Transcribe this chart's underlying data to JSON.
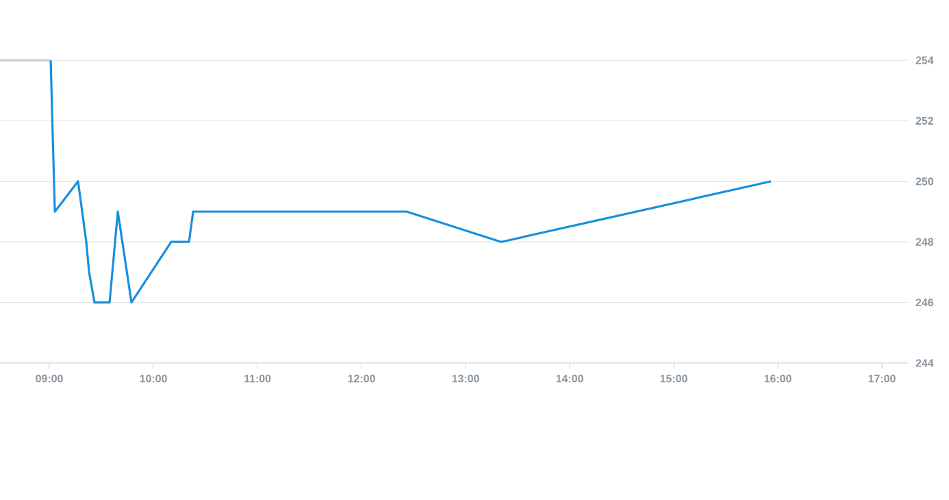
{
  "chart_data": {
    "type": "line",
    "series": [
      {
        "color": "#c5ccd3",
        "x": [
          8.526,
          9.0
        ],
        "values": [
          254,
          254
        ]
      },
      {
        "color": "#1a8fdc",
        "x": [
          9.013,
          9.053,
          9.276,
          9.355,
          9.382,
          9.434,
          9.579,
          9.658,
          9.789,
          10.171,
          10.342,
          10.382,
          12.434,
          13.342,
          15.934
        ],
        "values": [
          254,
          249,
          250,
          248,
          247,
          246,
          246,
          249,
          246,
          248,
          248,
          249,
          249,
          248,
          250
        ]
      }
    ],
    "xlim": [
      8.526,
      17.25
    ],
    "ylim": [
      244,
      254
    ],
    "xticks": [
      {
        "value": 9,
        "label": "09:00"
      },
      {
        "value": 10,
        "label": "10:00"
      },
      {
        "value": 11,
        "label": "11:00"
      },
      {
        "value": 12,
        "label": "12:00"
      },
      {
        "value": 13,
        "label": "13:00"
      },
      {
        "value": 14,
        "label": "14:00"
      },
      {
        "value": 15,
        "label": "15:00"
      },
      {
        "value": 16,
        "label": "16:00"
      },
      {
        "value": 17,
        "label": "17:00"
      }
    ],
    "yticks": [
      244,
      246,
      248,
      250,
      252,
      254
    ],
    "grid": "y",
    "marker": "none",
    "line_style": "solid"
  }
}
